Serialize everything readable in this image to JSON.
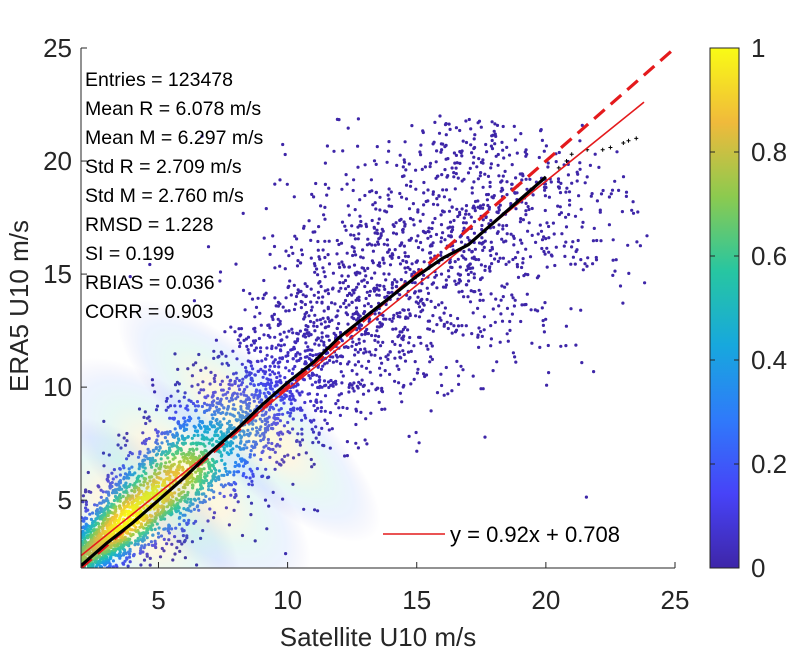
{
  "chart_data": {
    "type": "scatter",
    "title": "",
    "xlabel": "Satellite U10 m/s",
    "ylabel": "ERA5  U10 m/s",
    "xlim": [
      2,
      25
    ],
    "ylim": [
      2,
      25
    ],
    "x_ticks": [
      5,
      10,
      15,
      20,
      25
    ],
    "y_ticks": [
      5,
      10,
      15,
      20,
      25
    ],
    "x_tick_labels": [
      "5",
      "10",
      "15",
      "20",
      "25"
    ],
    "y_tick_labels": [
      "5",
      "10",
      "15",
      "20",
      "25"
    ],
    "grid": false,
    "stats": [
      "Entries = 123478",
      "Mean R = 6.078 m/s",
      "Mean M = 6.297 m/s",
      "Std R = 2.709 m/s",
      "Std M = 2.760 m/s",
      "RMSD = 1.228",
      "SI = 0.199",
      "RBIAS = 0.036",
      "CORR = 0.903"
    ],
    "legend": {
      "location": "bottom-right",
      "entries": [
        "y = 0.92x + 0.708"
      ]
    },
    "fit_line": {
      "slope": 0.92,
      "intercept": 0.708,
      "color": "#e41a1c"
    },
    "identity_line": {
      "slope": 1,
      "intercept": 0,
      "style": "dashed",
      "color": "#e41a1c"
    },
    "quantile_curve": {
      "color": "#000000",
      "x": [
        2.0,
        3.0,
        4.0,
        5.0,
        6.0,
        7.0,
        8.0,
        9.0,
        10.0,
        11.0,
        12.0,
        13.0,
        14.0,
        15.0,
        16.0,
        17.0,
        18.0,
        19.0,
        20.0
      ],
      "y": [
        2.1,
        3.1,
        4.0,
        5.0,
        6.0,
        7.1,
        8.1,
        9.2,
        10.2,
        11.1,
        12.2,
        13.1,
        14.0,
        14.9,
        15.7,
        16.3,
        17.3,
        18.3,
        19.3
      ]
    },
    "sparse_points": {
      "x": [
        20.5,
        20.8,
        21.0,
        21.6,
        22.2,
        22.5,
        23.0,
        23.2,
        23.5
      ],
      "y": [
        19.7,
        20.0,
        20.3,
        20.5,
        20.5,
        20.6,
        20.8,
        20.9,
        21.0
      ]
    },
    "colorbar": {
      "min": 0,
      "max": 1,
      "ticks": [
        0,
        0.2,
        0.4,
        0.6,
        0.8,
        1
      ],
      "tick_labels": [
        "0",
        "0.2",
        "0.4",
        "0.6",
        "0.8",
        "1"
      ],
      "colormap": "parula",
      "stops": [
        "#3e26a8",
        "#4743f8",
        "#2f7afa",
        "#17a8dd",
        "#27c6a1",
        "#8cca4f",
        "#f0ba3b",
        "#f9fb15"
      ]
    },
    "density_axis": {
      "along": [
        3.5,
        25.0
      ],
      "sigma_across": [
        0.45,
        3.6
      ]
    }
  }
}
